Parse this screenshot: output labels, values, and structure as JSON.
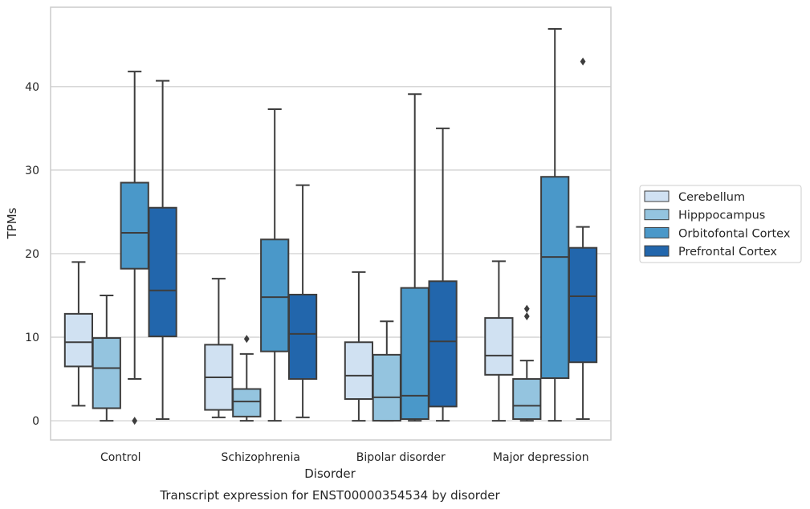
{
  "chart_data": {
    "type": "boxplot",
    "title": "Transcript expression for ENST00000354534 by disorder",
    "xlabel": "Disorder",
    "ylabel": "TPMs",
    "ylim": [
      -2.3,
      49.5
    ],
    "yticks": [
      0,
      10,
      20,
      30,
      40
    ],
    "grid": "horizontal",
    "legend_position": "right",
    "categories": [
      "Control",
      "Schizophrenia",
      "Bipolar disorder",
      "Major depression"
    ],
    "series": [
      {
        "name": "Cerebellum",
        "color": "#d0e1f2",
        "boxes": [
          {
            "whisker_low": 1.8,
            "q1": 6.5,
            "median": 9.4,
            "q3": 12.8,
            "whisker_high": 19.0,
            "outliers": []
          },
          {
            "whisker_low": 0.4,
            "q1": 1.3,
            "median": 5.2,
            "q3": 9.1,
            "whisker_high": 17.0,
            "outliers": []
          },
          {
            "whisker_low": 0.0,
            "q1": 2.6,
            "median": 5.4,
            "q3": 9.4,
            "whisker_high": 17.8,
            "outliers": []
          },
          {
            "whisker_low": 0.0,
            "q1": 5.5,
            "median": 7.8,
            "q3": 12.3,
            "whisker_high": 19.1,
            "outliers": []
          }
        ]
      },
      {
        "name": "Hipppocampus",
        "color": "#94c4df",
        "boxes": [
          {
            "whisker_low": 0.0,
            "q1": 1.5,
            "median": 6.3,
            "q3": 9.9,
            "whisker_high": 15.0,
            "outliers": []
          },
          {
            "whisker_low": 0.0,
            "q1": 0.5,
            "median": 2.3,
            "q3": 3.8,
            "whisker_high": 8.0,
            "outliers": [
              9.8
            ]
          },
          {
            "whisker_low": 0.0,
            "q1": 0.0,
            "median": 2.8,
            "q3": 7.9,
            "whisker_high": 11.9,
            "outliers": []
          },
          {
            "whisker_low": 0.0,
            "q1": 0.2,
            "median": 1.8,
            "q3": 5.0,
            "whisker_high": 7.2,
            "outliers": [
              12.5,
              13.4
            ]
          }
        ]
      },
      {
        "name": "Orbitofontal Cortex",
        "color": "#4a98c9",
        "boxes": [
          {
            "whisker_low": 5.0,
            "q1": 18.2,
            "median": 22.5,
            "q3": 28.5,
            "whisker_high": 41.8,
            "outliers": [
              0.0
            ]
          },
          {
            "whisker_low": 0.0,
            "q1": 8.3,
            "median": 14.8,
            "q3": 21.7,
            "whisker_high": 37.3,
            "outliers": []
          },
          {
            "whisker_low": 0.0,
            "q1": 0.2,
            "median": 3.0,
            "q3": 15.9,
            "whisker_high": 39.1,
            "outliers": []
          },
          {
            "whisker_low": 0.0,
            "q1": 5.1,
            "median": 19.6,
            "q3": 29.2,
            "whisker_high": 46.9,
            "outliers": []
          }
        ]
      },
      {
        "name": "Prefrontal Cortex",
        "color": "#2266ac",
        "boxes": [
          {
            "whisker_low": 0.2,
            "q1": 10.1,
            "median": 15.6,
            "q3": 25.5,
            "whisker_high": 40.7,
            "outliers": []
          },
          {
            "whisker_low": 0.4,
            "q1": 5.0,
            "median": 10.4,
            "q3": 15.1,
            "whisker_high": 28.2,
            "outliers": []
          },
          {
            "whisker_low": 0.0,
            "q1": 1.7,
            "median": 9.5,
            "q3": 16.7,
            "whisker_high": 35.0,
            "outliers": []
          },
          {
            "whisker_low": 0.2,
            "q1": 7.0,
            "median": 14.9,
            "q3": 20.7,
            "whisker_high": 23.2,
            "outliers": [
              43.0
            ]
          }
        ]
      }
    ]
  }
}
